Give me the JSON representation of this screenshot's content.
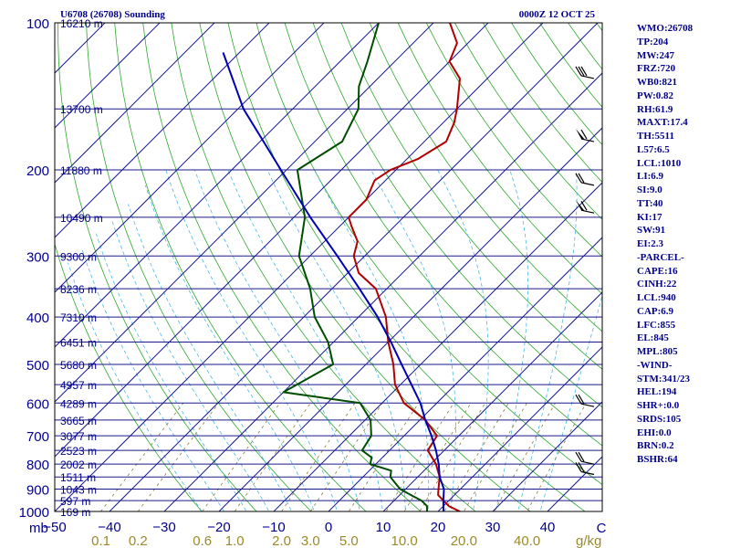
{
  "title_left": "U6708 (26708) Sounding",
  "title_right": "0000Z 12 OCT 25",
  "chart_data": {
    "type": "line",
    "subtype": "skew-t log-p thermodynamic diagram",
    "xlabel": "C",
    "mixing_label": "g/kg",
    "corner_label": "mb",
    "pressure_range": [
      1000,
      100
    ],
    "temperature_range": [
      -50,
      50
    ],
    "pressure_ticks": [
      100,
      200,
      300,
      400,
      500,
      600,
      700,
      800,
      900,
      1000
    ],
    "temperature_ticks": [
      -50,
      -40,
      -30,
      -20,
      -10,
      0,
      10,
      20,
      30,
      40
    ],
    "temperature_tick_labels": [
      "−50",
      "−40",
      "−30",
      "−20",
      "−10",
      "0",
      "10",
      "20",
      "30",
      "40"
    ],
    "mixing_ratio_labels": [
      {
        "value": 0.1,
        "text": "0.1"
      },
      {
        "value": 0.2,
        "text": "0.2"
      },
      {
        "value": 0.6,
        "text": "0.6"
      },
      {
        "value": 1.0,
        "text": "1.0"
      },
      {
        "value": 2.0,
        "text": "2.0"
      },
      {
        "value": 3.0,
        "text": "3.0"
      },
      {
        "value": 5.0,
        "text": "5.0"
      },
      {
        "value": 10.0,
        "text": "10.0"
      },
      {
        "value": 20.0,
        "text": "20.0"
      },
      {
        "value": 40.0,
        "text": "40.0"
      }
    ],
    "height_labels": [
      {
        "p": 100,
        "text": "16210 m"
      },
      {
        "p": 150,
        "text": "13700 m"
      },
      {
        "p": 200,
        "text": "11880 m"
      },
      {
        "p": 250,
        "text": "10490 m"
      },
      {
        "p": 300,
        "text": "9300 m"
      },
      {
        "p": 350,
        "text": "8236 m"
      },
      {
        "p": 400,
        "text": "7310 m"
      },
      {
        "p": 450,
        "text": "6451 m"
      },
      {
        "p": 500,
        "text": "5680 m"
      },
      {
        "p": 550,
        "text": "4957 m"
      },
      {
        "p": 600,
        "text": "4289 m"
      },
      {
        "p": 650,
        "text": "3665 m"
      },
      {
        "p": 700,
        "text": "3077 m"
      },
      {
        "p": 750,
        "text": "2523 m"
      },
      {
        "p": 800,
        "text": "2002 m"
      },
      {
        "p": 850,
        "text": "1511 m"
      },
      {
        "p": 900,
        "text": "1043 m"
      },
      {
        "p": 950,
        "text": "597 m"
      },
      {
        "p": 1000,
        "text": "169 m"
      }
    ],
    "series": [
      {
        "name": "",
        "role": "temperature",
        "color": "#b00000",
        "points": [
          [
            1000,
            24
          ],
          [
            975,
            21
          ],
          [
            950,
            19
          ],
          [
            925,
            17
          ],
          [
            900,
            16
          ],
          [
            850,
            14
          ],
          [
            800,
            11
          ],
          [
            750,
            7
          ],
          [
            700,
            6
          ],
          [
            650,
            1
          ],
          [
            600,
            -6
          ],
          [
            550,
            -11
          ],
          [
            500,
            -15
          ],
          [
            450,
            -20
          ],
          [
            400,
            -25
          ],
          [
            350,
            -32
          ],
          [
            325,
            -38
          ],
          [
            300,
            -42
          ],
          [
            280,
            -44
          ],
          [
            260,
            -48
          ],
          [
            250,
            -50
          ],
          [
            230,
            -50
          ],
          [
            210,
            -52
          ],
          [
            200,
            -51
          ],
          [
            190,
            -48
          ],
          [
            175,
            -46
          ],
          [
            160,
            -48
          ],
          [
            150,
            -50
          ],
          [
            130,
            -55
          ],
          [
            120,
            -60
          ],
          [
            110,
            -62
          ],
          [
            100,
            -67
          ]
        ]
      },
      {
        "name": "",
        "role": "dewpoint",
        "color": "#004d00",
        "points": [
          [
            1000,
            18
          ],
          [
            975,
            17
          ],
          [
            950,
            15
          ],
          [
            925,
            12
          ],
          [
            900,
            9
          ],
          [
            850,
            5
          ],
          [
            825,
            4
          ],
          [
            800,
            -1
          ],
          [
            775,
            -2
          ],
          [
            750,
            -5
          ],
          [
            700,
            -6
          ],
          [
            650,
            -9
          ],
          [
            600,
            -14
          ],
          [
            570,
            -30
          ],
          [
            500,
            -26
          ],
          [
            450,
            -31
          ],
          [
            400,
            -38
          ],
          [
            350,
            -44
          ],
          [
            300,
            -52
          ],
          [
            250,
            -58
          ],
          [
            200,
            -68
          ],
          [
            175,
            -65
          ],
          [
            150,
            -68
          ],
          [
            135,
            -72
          ],
          [
            120,
            -75
          ],
          [
            100,
            -80
          ]
        ]
      },
      {
        "name": "",
        "role": "parcel",
        "color": "#0000b0",
        "points": [
          [
            1000,
            21
          ],
          [
            950,
            19
          ],
          [
            900,
            17
          ],
          [
            850,
            14
          ],
          [
            800,
            11.5
          ],
          [
            750,
            8.5
          ],
          [
            700,
            5
          ],
          [
            650,
            1
          ],
          [
            600,
            -3
          ],
          [
            550,
            -8
          ],
          [
            500,
            -13.5
          ],
          [
            450,
            -19.5
          ],
          [
            400,
            -26.5
          ],
          [
            350,
            -35
          ],
          [
            300,
            -45
          ],
          [
            250,
            -57
          ],
          [
            200,
            -71
          ],
          [
            150,
            -89
          ],
          [
            115,
            -103
          ]
        ]
      }
    ],
    "wind_barbs": [
      {
        "p": 130,
        "knots": 30
      },
      {
        "p": 175,
        "knots": 60
      },
      {
        "p": 215,
        "knots": 20
      },
      {
        "p": 245,
        "knots": 60
      },
      {
        "p": 610,
        "knots": 20
      },
      {
        "p": 800,
        "knots": 20
      },
      {
        "p": 840,
        "knots": 20
      }
    ],
    "indices": [
      "WMO:26708",
      "TP:204",
      "MW:247",
      "FRZ:720",
      "WB0:821",
      "PW:0.82",
      "RH:61.9",
      "MAXT:17.4",
      "TH:5511",
      "L57:6.5",
      "LCL:1010",
      "LI:6.9",
      "SI:9.0",
      "TT:40",
      "KI:17",
      "SW:91",
      "EI:2.3",
      "-PARCEL-",
      "CAPE:16",
      "CINH:22",
      "LCL:940",
      "CAP:6.9",
      "LFC:855",
      "EL:845",
      "MPL:805",
      "-WIND-",
      "STM:341/23",
      "HEL:194",
      "SHR+:0.0",
      "SRDS:105",
      "EHI:0.0",
      "BRN:0.2",
      "BSHR:64"
    ]
  },
  "colors": {
    "isobar": "#1a1a8c",
    "isotherm": "#1a1a8c",
    "dry_adiabat": "#2ea82e",
    "moist_adiabat": "#4ab8e8",
    "mixing_ratio": "#8a7a3a",
    "label": "#00008b",
    "barb": "#000000"
  }
}
